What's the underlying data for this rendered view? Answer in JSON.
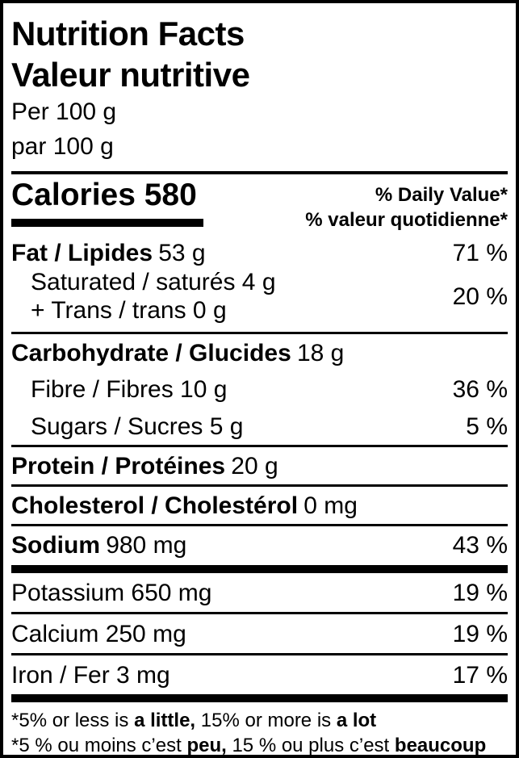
{
  "header": {
    "title_en": "Nutrition Facts",
    "title_fr": "Valeur nutritive",
    "per_en": "Per 100 g",
    "per_fr": "par 100 g"
  },
  "calories": {
    "label": "Calories 580",
    "dv_header_en": "% Daily Value*",
    "dv_header_fr": "% valeur quotidienne*"
  },
  "nutrients": {
    "fat": {
      "name": "Fat / Lipides",
      "amount": "53 g",
      "dv": "71 %"
    },
    "saturated": {
      "line1": "Saturated / saturés 4 g",
      "line2": "+ Trans / trans 0 g",
      "dv": "20 %"
    },
    "carbohydrate": {
      "name": "Carbohydrate / Glucides",
      "amount": "18 g"
    },
    "fibre": {
      "name": "Fibre / Fibres 10 g",
      "dv": "36 %"
    },
    "sugars": {
      "name": "Sugars / Sucres 5 g",
      "dv": "5 %"
    },
    "protein": {
      "name": "Protein / Protéines",
      "amount": "20 g"
    },
    "cholesterol": {
      "name": "Cholesterol / Cholestérol",
      "amount": "0 mg"
    },
    "sodium": {
      "name": "Sodium",
      "amount": "980 mg",
      "dv": "43 %"
    },
    "potassium": {
      "name": "Potassium 650 mg",
      "dv": "19 %"
    },
    "calcium": {
      "name": "Calcium 250 mg",
      "dv": "19 %"
    },
    "iron": {
      "name": "Iron / Fer 3 mg",
      "dv": "17 %"
    }
  },
  "footnotes": {
    "en": {
      "p1": "*5% or less is ",
      "b1": "a little,",
      "p2": " 15% or more is ",
      "b2": "a lot"
    },
    "fr": {
      "p1": "*5 % ou moins c’est ",
      "b1": "peu,",
      "p2": " 15 % ou plus c’est ",
      "b2": "beaucoup"
    }
  },
  "colors": {
    "ink": "#000000",
    "background": "#ffffff"
  }
}
